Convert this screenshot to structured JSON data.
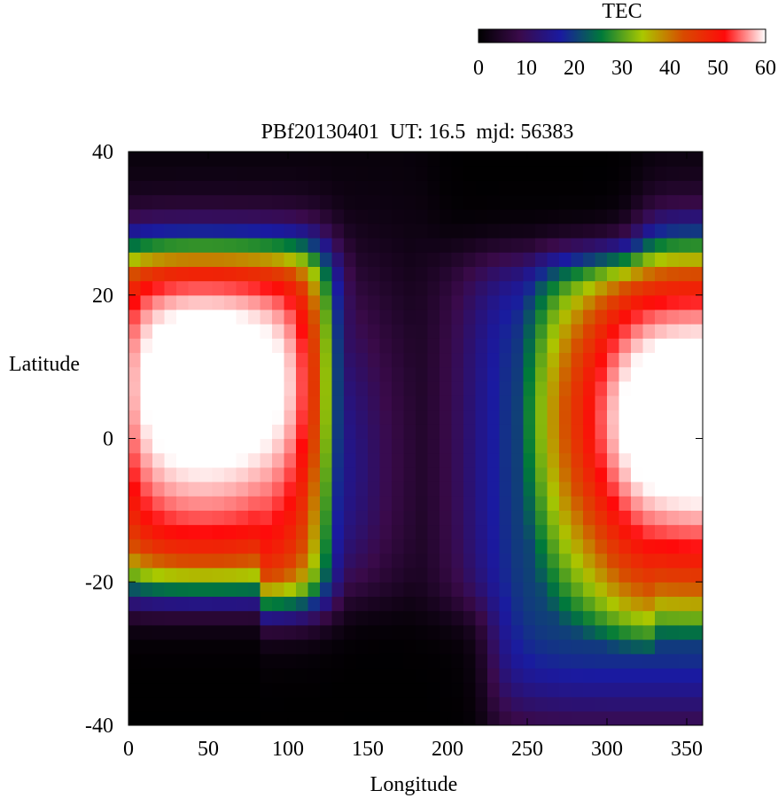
{
  "chart_data": {
    "type": "heatmap",
    "title": "PBf20130401  UT: 16.5  mjd: 56383",
    "xlabel": "Longitude",
    "ylabel": "Latitude",
    "xlim": [
      0,
      360
    ],
    "ylim": [
      -40,
      40
    ],
    "x_ticks": [
      0,
      50,
      100,
      150,
      200,
      250,
      300,
      350
    ],
    "y_ticks": [
      -40,
      -20,
      0,
      20,
      40
    ],
    "colorbar": {
      "label": "TEC",
      "range": [
        0,
        60
      ],
      "ticks": [
        0,
        10,
        20,
        30,
        40,
        50,
        60
      ],
      "colors": [
        "#000000",
        "#3a0a4a",
        "#1a1aa0",
        "#007a3a",
        "#aac800",
        "#d84a00",
        "#ff0a0a",
        "#ffffff"
      ]
    },
    "grid": false,
    "approximate_structure": {
      "west_crest": {
        "lon_range": [
          0,
          130
        ],
        "lat_range": [
          -25,
          27
        ],
        "peak_lon": 30,
        "peak_lat": 10,
        "peak_tec": 60
      },
      "east_crest": {
        "lon_range": [
          220,
          360
        ],
        "lat_range": [
          -30,
          25
        ],
        "peak_lon": 350,
        "peak_lat": 5,
        "peak_tec": 60
      },
      "north_dark_region": {
        "lon_range": [
          190,
          310
        ],
        "lat_min": 25,
        "tec": 0
      },
      "south_dark_region": {
        "lon_range": [
          0,
          220
        ],
        "lat_max": -25,
        "tec": 0
      }
    }
  }
}
